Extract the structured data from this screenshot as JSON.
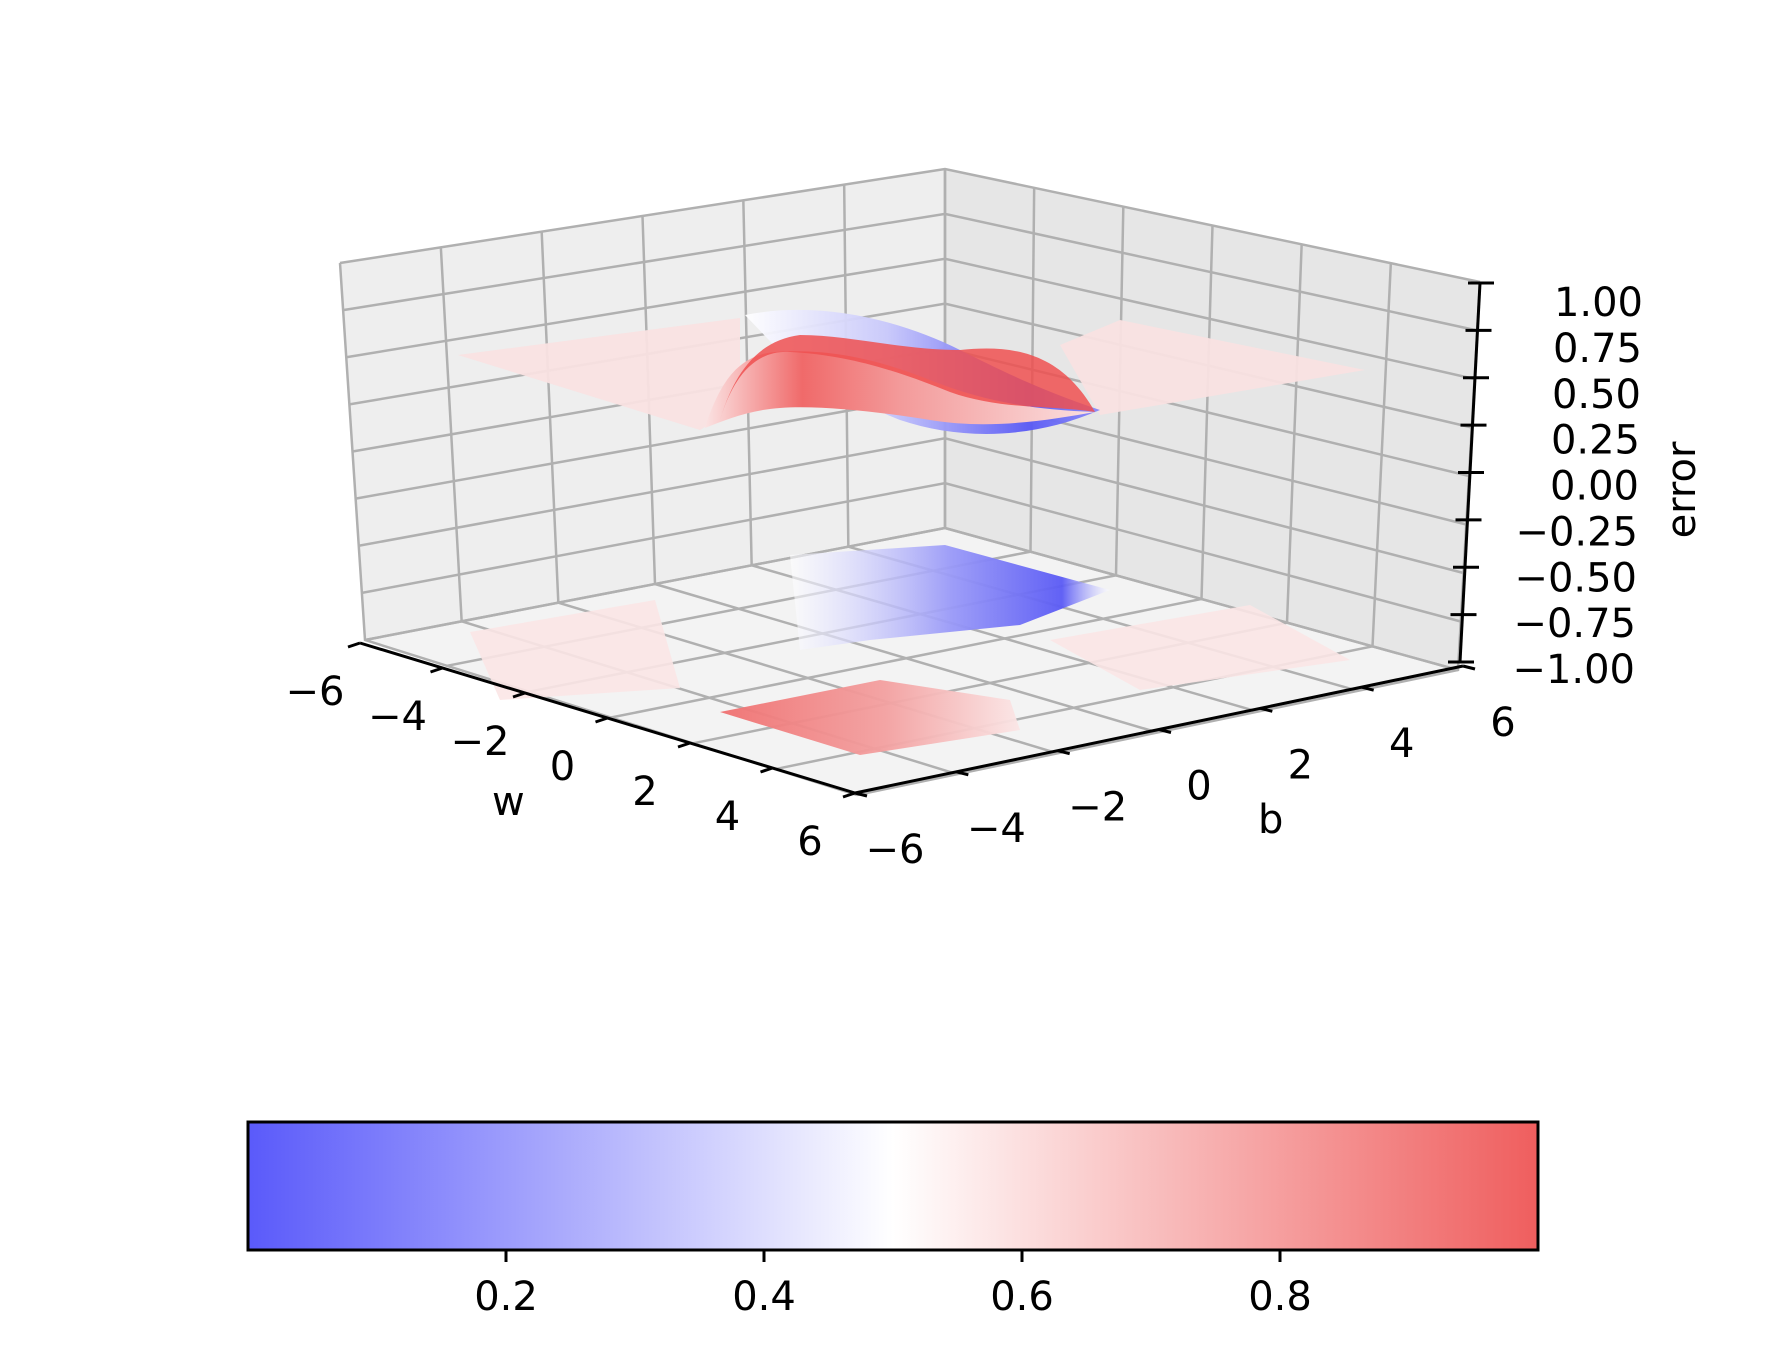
{
  "chart_data": {
    "type": "surface3d",
    "title": "",
    "xlabel": "w",
    "ylabel": "b",
    "zlabel": "error",
    "x_ticks": [
      "−6",
      "−4",
      "−2",
      "0",
      "2",
      "4",
      "6"
    ],
    "y_ticks": [
      "−6",
      "−4",
      "−2",
      "0",
      "2",
      "4",
      "6"
    ],
    "z_ticks": [
      "−1.00",
      "−0.75",
      "−0.50",
      "−0.25",
      "0.00",
      "0.25",
      "0.50",
      "0.75",
      "1.00"
    ],
    "xlim": [
      -6,
      6
    ],
    "ylim": [
      -6,
      6
    ],
    "zlim": [
      -1,
      1
    ],
    "surface": "sigmoid(w*x + b) error surface; plateau ~0.57 (light red), ridge up to ~0.99 (red), trough down to ~0.01 (blue)",
    "surface_z_range": [
      0.01,
      0.99
    ],
    "plateau_value": 0.57,
    "contour_projection_z": -1.0,
    "colormap": "bwr",
    "colorbar": {
      "orientation": "horizontal",
      "placement": "bottom",
      "ticks": [
        "0.2",
        "0.4",
        "0.6",
        "0.8"
      ],
      "range": [
        0.0,
        1.0
      ]
    },
    "colors": {
      "low": "#5a5afa",
      "mid": "#ffffff",
      "high": "#f06060"
    }
  }
}
